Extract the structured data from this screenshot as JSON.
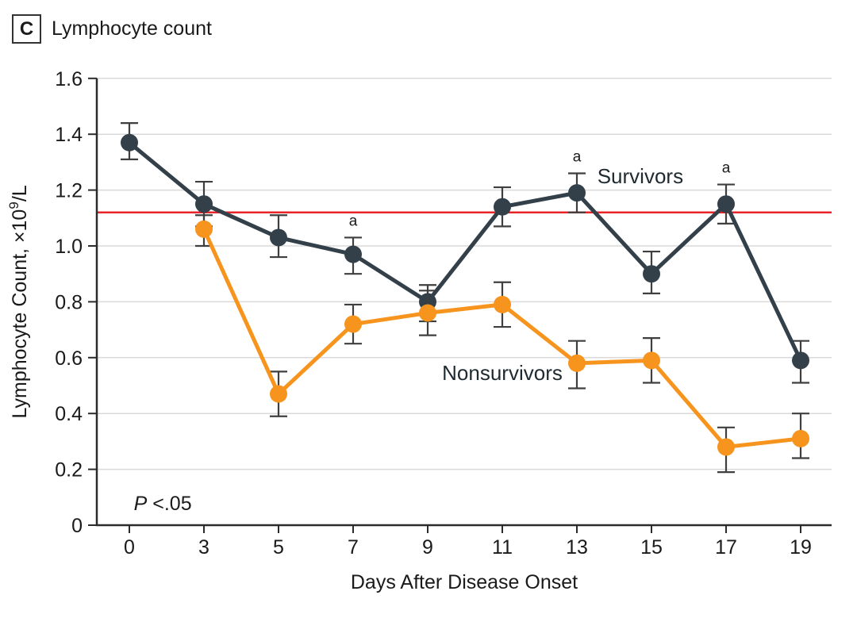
{
  "figure": {
    "panel_letter": "C",
    "title": "Lymphocyte count"
  },
  "chart_data": {
    "type": "line",
    "title": "Lymphocyte count",
    "xlabel": "Days After Disease Onset",
    "ylabel": "Lymphocyte Count, ×10⁹/L",
    "ylabel_parts": {
      "pre": "Lymphocyte Count, ×10",
      "sup": "9",
      "post": "/L"
    },
    "x_categories": [
      0,
      3,
      5,
      7,
      9,
      11,
      13,
      15,
      17,
      19
    ],
    "ylim": [
      0,
      1.6
    ],
    "yticks": [
      0,
      0.2,
      0.4,
      0.6,
      0.8,
      1.0,
      1.2,
      1.4,
      1.6
    ],
    "ytick_labels": [
      "0",
      "0.2",
      "0.4",
      "0.6",
      "0.8",
      "1.0",
      "1.2",
      "1.4",
      "1.6"
    ],
    "grid": true,
    "legend_position": "inline-labels",
    "reference_line": {
      "value": 1.12,
      "color": "#E8242A"
    },
    "sig_marker_text": "a",
    "p_annotation": {
      "italic": "P",
      "rest": " <.05",
      "x_index": 0.06,
      "y_value": 0.08
    },
    "series": [
      {
        "name": "Survivors",
        "color": "#334049",
        "x": [
          0,
          3,
          5,
          7,
          9,
          11,
          13,
          15,
          17,
          19
        ],
        "values": [
          1.37,
          1.15,
          1.03,
          0.97,
          0.8,
          1.14,
          1.19,
          0.9,
          1.15,
          0.59
        ],
        "err_low": [
          1.31,
          1.07,
          0.96,
          0.9,
          0.73,
          1.07,
          1.12,
          0.83,
          1.08,
          0.51
        ],
        "err_high": [
          1.44,
          1.23,
          1.11,
          1.03,
          0.86,
          1.21,
          1.26,
          0.98,
          1.22,
          0.66
        ],
        "sig_marker_days": [
          7,
          13,
          17
        ],
        "label": {
          "text": "Survivors",
          "x_index": 6.85,
          "y_value": 1.25
        }
      },
      {
        "name": "Nonsurvivors",
        "color": "#F7941E",
        "x": [
          3,
          5,
          7,
          9,
          11,
          13,
          15,
          17,
          19
        ],
        "values": [
          1.06,
          0.47,
          0.72,
          0.76,
          0.79,
          0.58,
          0.59,
          0.28,
          0.31
        ],
        "err_low": [
          1.0,
          0.39,
          0.65,
          0.68,
          0.71,
          0.49,
          0.51,
          0.19,
          0.24
        ],
        "err_high": [
          1.11,
          0.55,
          0.79,
          0.84,
          0.87,
          0.66,
          0.67,
          0.35,
          0.4
        ],
        "sig_marker_days": [],
        "label": {
          "text": "Nonsurvivors",
          "x_index": 5.0,
          "y_value": 0.545
        }
      }
    ],
    "styles": {
      "grid_color": "#DADADA",
      "axis_color": "#2B2B2B",
      "errorbar_color": "#3F3F3F",
      "text_color": "#1A1A1A",
      "label_color": "#1F2A30"
    }
  }
}
